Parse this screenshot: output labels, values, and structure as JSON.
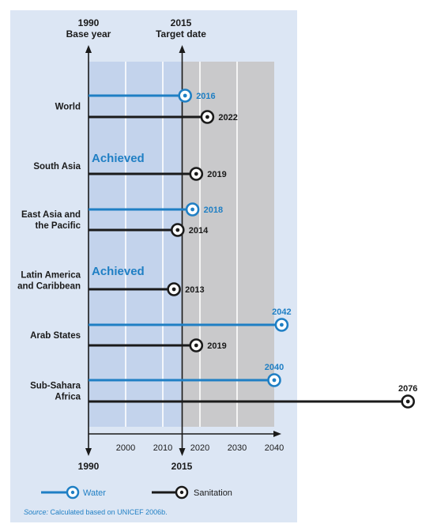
{
  "chart_data": {
    "type": "timeline",
    "header_left": {
      "year": "1990",
      "label": "Base year"
    },
    "header_right": {
      "year": "2015",
      "label": "Target date"
    },
    "bottom_left": "1990",
    "bottom_right": "2015",
    "x_ticks": [
      "2000",
      "2010",
      "2020",
      "2030",
      "2040"
    ],
    "xlim": [
      1990,
      2040
    ],
    "series": [
      {
        "name": "Water",
        "color": "#1f7fc4"
      },
      {
        "name": "Sanitation",
        "color": "#1a1a1a"
      }
    ],
    "regions": [
      {
        "name": [
          "World"
        ],
        "water": {
          "year": 2016,
          "label": "2016"
        },
        "sanitation": {
          "year": 2022,
          "label": "2022"
        }
      },
      {
        "name": [
          "South Asia"
        ],
        "water": {
          "achieved": true,
          "label": "Achieved"
        },
        "sanitation": {
          "year": 2019,
          "label": "2019"
        }
      },
      {
        "name": [
          "East Asia and",
          "the Pacific"
        ],
        "water": {
          "year": 2018,
          "label": "2018"
        },
        "sanitation": {
          "year": 2014,
          "label": "2014"
        }
      },
      {
        "name": [
          "Latin America",
          "and Caribbean"
        ],
        "water": {
          "achieved": true,
          "label": "Achieved"
        },
        "sanitation": {
          "year": 2013,
          "label": "2013"
        }
      },
      {
        "name": [
          "Arab States"
        ],
        "water": {
          "year": 2042,
          "label": "2042"
        },
        "sanitation": {
          "year": 2019,
          "label": "2019"
        }
      },
      {
        "name": [
          "Sub-Sahara",
          "Africa"
        ],
        "water": {
          "year": 2040,
          "label": "2040"
        },
        "sanitation": {
          "year": 2076,
          "label": "2076"
        }
      }
    ],
    "legend": {
      "water": "Water",
      "sanitation": "Sanitation"
    },
    "source": {
      "prefix": "Source:",
      "text": " Calculated based on UNICEF 2006b."
    },
    "colors": {
      "panel": "#dce6f4",
      "plot_blue": "#c3d3ec",
      "plot_gray": "#c9c9cb",
      "water": "#1f7fc4",
      "sanitation": "#1a1a1a"
    }
  }
}
